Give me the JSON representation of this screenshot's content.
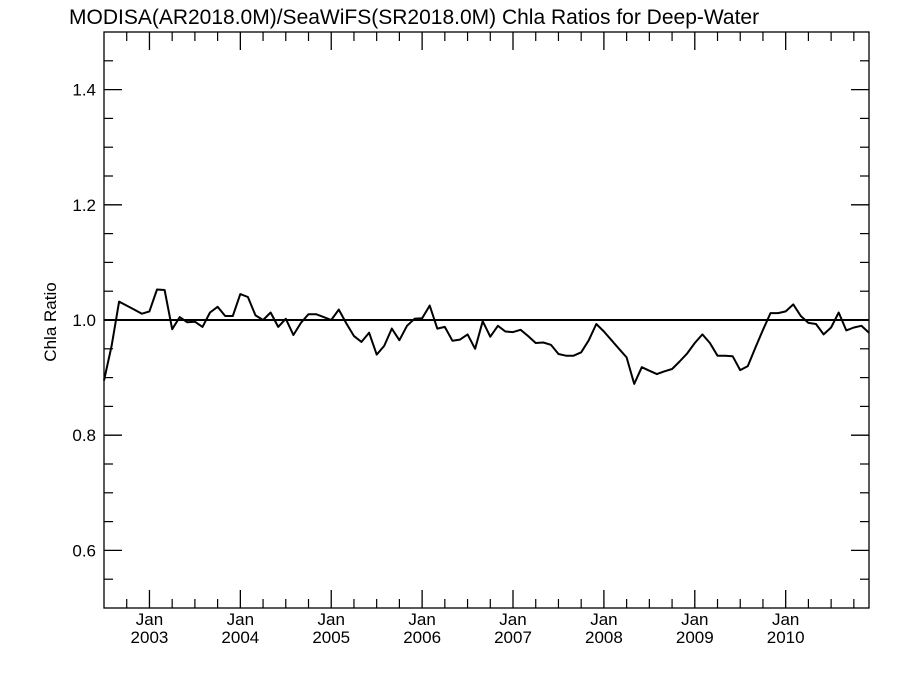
{
  "chart_data": {
    "type": "line",
    "title": "MODISA(AR2018.0M)/SeaWiFS(SR2018.0M)  Chla Ratios for Deep-Water",
    "xlabel": "",
    "ylabel": "Chla Ratio",
    "xlim": [
      "2002-07",
      "2010-12"
    ],
    "ylim": [
      0.5,
      1.5
    ],
    "y_ticks": [
      0.6,
      0.8,
      1.0,
      1.2,
      1.4
    ],
    "y_tick_labels": [
      "0.6",
      "0.8",
      "1.0",
      "1.2",
      "1.4"
    ],
    "x_ticks": [
      {
        "x": "2003-01",
        "month": "Jan",
        "year": "2003"
      },
      {
        "x": "2004-01",
        "month": "Jan",
        "year": "2004"
      },
      {
        "x": "2005-01",
        "month": "Jan",
        "year": "2005"
      },
      {
        "x": "2006-01",
        "month": "Jan",
        "year": "2006"
      },
      {
        "x": "2007-01",
        "month": "Jan",
        "year": "2007"
      },
      {
        "x": "2008-01",
        "month": "Jan",
        "year": "2008"
      },
      {
        "x": "2009-01",
        "month": "Jan",
        "year": "2009"
      },
      {
        "x": "2010-01",
        "month": "Jan",
        "year": "2010"
      }
    ],
    "reference_line": 1.0,
    "grid": false,
    "series": [
      {
        "x": [
          "2002-07",
          "2002-08",
          "2002-09",
          "2002-10",
          "2002-11",
          "2002-12",
          "2003-01",
          "2003-02",
          "2003-03",
          "2003-04",
          "2003-05",
          "2003-06",
          "2003-07",
          "2003-08",
          "2003-09",
          "2003-10",
          "2003-11",
          "2003-12",
          "2004-01",
          "2004-02",
          "2004-03",
          "2004-04",
          "2004-05",
          "2004-06",
          "2004-07",
          "2004-08",
          "2004-09",
          "2004-10",
          "2004-11",
          "2004-12",
          "2005-01",
          "2005-02",
          "2005-03",
          "2005-04",
          "2005-05",
          "2005-06",
          "2005-07",
          "2005-08",
          "2005-09",
          "2005-10",
          "2005-11",
          "2005-12",
          "2006-01",
          "2006-02",
          "2006-03",
          "2006-04",
          "2006-05",
          "2006-06",
          "2006-07",
          "2006-08",
          "2006-09",
          "2006-10",
          "2006-11",
          "2006-12",
          "2007-01",
          "2007-02",
          "2007-03",
          "2007-04",
          "2007-05",
          "2007-06",
          "2007-07",
          "2007-08",
          "2007-09",
          "2007-10",
          "2007-11",
          "2007-12",
          "2008-01",
          "2008-02",
          "2008-03",
          "2008-04",
          "2008-05",
          "2008-06",
          "2008-07",
          "2008-08",
          "2008-09",
          "2008-10",
          "2008-11",
          "2008-12",
          "2009-01",
          "2009-02",
          "2009-03",
          "2009-04",
          "2009-05",
          "2009-06",
          "2009-07",
          "2009-08",
          "2009-09",
          "2009-10",
          "2009-11",
          "2009-12",
          "2010-01",
          "2010-02",
          "2010-03",
          "2010-04",
          "2010-05",
          "2010-06",
          "2010-07",
          "2010-08",
          "2010-09",
          "2010-10",
          "2010-11",
          "2010-12"
        ],
        "y": [
          0.895,
          0.955,
          1.032,
          1.025,
          1.018,
          1.011,
          1.015,
          1.053,
          1.052,
          0.984,
          1.005,
          0.996,
          0.997,
          0.988,
          1.013,
          1.023,
          1.007,
          1.007,
          1.045,
          1.04,
          1.008,
          1.0,
          1.013,
          0.988,
          1.002,
          0.974,
          0.995,
          1.01,
          1.01,
          1.005,
          1.0,
          1.018,
          0.994,
          0.972,
          0.962,
          0.978,
          0.94,
          0.955,
          0.985,
          0.965,
          0.99,
          1.002,
          1.003,
          1.025,
          0.985,
          0.988,
          0.964,
          0.966,
          0.975,
          0.95,
          0.998,
          0.971,
          0.99,
          0.98,
          0.979,
          0.983,
          0.972,
          0.96,
          0.961,
          0.957,
          0.941,
          0.938,
          0.938,
          0.944,
          0.965,
          0.993,
          0.98,
          0.965,
          0.95,
          0.935,
          0.889,
          0.918,
          0.912,
          0.906,
          0.911,
          0.915,
          0.928,
          0.942,
          0.96,
          0.975,
          0.96,
          0.938,
          0.938,
          0.937,
          0.913,
          0.92,
          0.952,
          0.983,
          1.012,
          1.012,
          1.015,
          1.027,
          1.007,
          0.995,
          0.993,
          0.975,
          0.987,
          1.013,
          0.982,
          0.987,
          0.99,
          0.978
        ]
      }
    ]
  }
}
